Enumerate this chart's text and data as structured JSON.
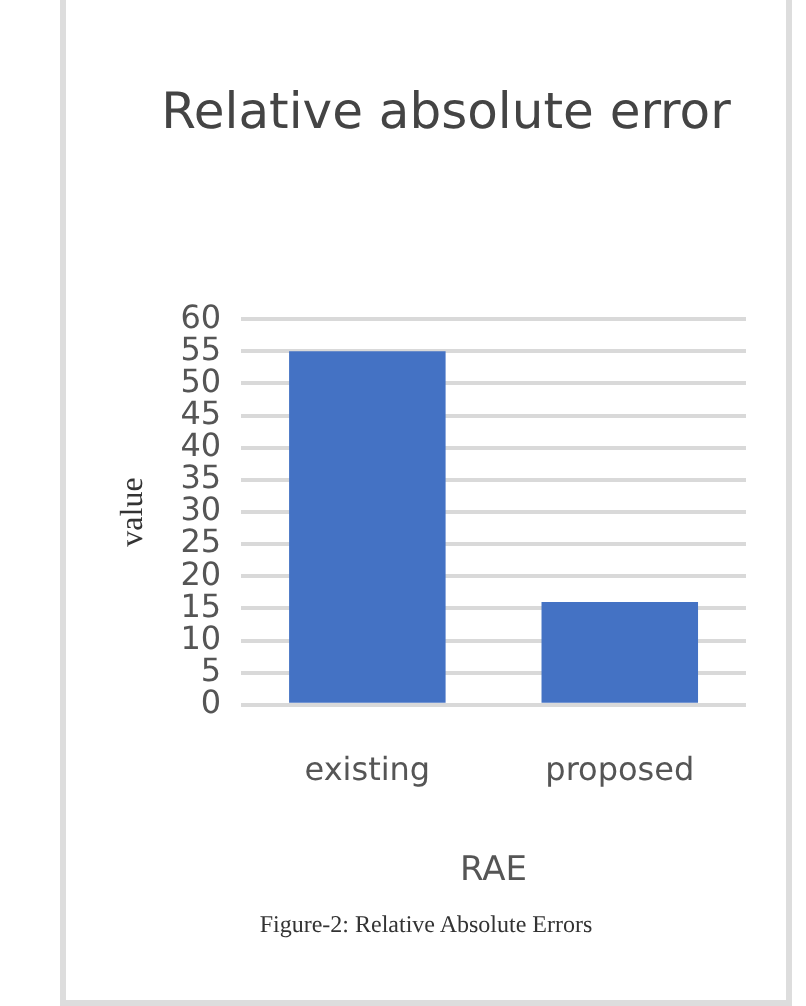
{
  "chart_data": {
    "type": "bar",
    "title": "Relative absolute error",
    "xlabel": "RAE",
    "ylabel": "value",
    "categories": [
      "existing",
      "proposed"
    ],
    "values": [
      55,
      16
    ],
    "color": "#4472c4",
    "ylim": [
      0,
      60
    ],
    "yticks": [
      0,
      5,
      10,
      15,
      20,
      25,
      30,
      35,
      40,
      45,
      50,
      55,
      60
    ],
    "grid": "y",
    "legend": false,
    "annotations": [
      "Figure-2: Relative Absolute Errors"
    ]
  }
}
